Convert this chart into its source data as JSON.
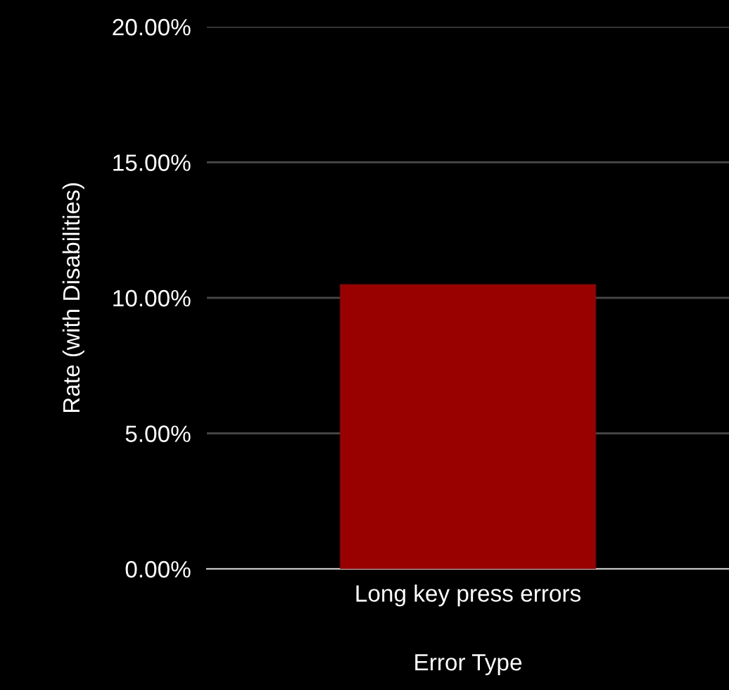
{
  "chart_data": {
    "type": "bar",
    "xlabel": "Error Type",
    "ylabel": "Rate (with Disabilities)",
    "categories": [
      "Long key press errors"
    ],
    "series": [
      {
        "color": "#990000",
        "values": [
          10.5
        ]
      }
    ],
    "ylim": [
      0,
      20
    ],
    "yticks": [
      {
        "value": 0,
        "label": "0.00%"
      },
      {
        "value": 5,
        "label": "5.00%"
      },
      {
        "value": 10,
        "label": "10.00%"
      },
      {
        "value": 15,
        "label": "15.00%"
      },
      {
        "value": 20,
        "label": "20.00%"
      }
    ],
    "grid": "y",
    "legend": false
  }
}
